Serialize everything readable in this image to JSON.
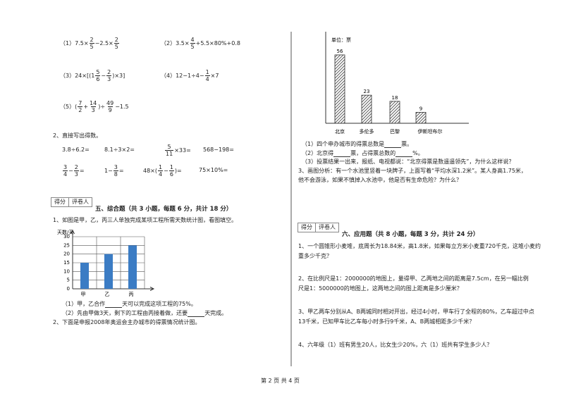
{
  "calc": [
    {
      "label": "（1）",
      "expr": [
        "7.5×",
        {
          "n": "2",
          "d": "5"
        },
        "−2.5×",
        {
          "n": "2",
          "d": "5"
        }
      ]
    },
    {
      "label": "（2）",
      "expr": [
        "3.5×",
        {
          "n": "4",
          "d": "5"
        },
        "+5.5×80%+0.8"
      ]
    },
    {
      "label": "（3）",
      "expr": [
        "24×[(1",
        {
          "n": "5",
          "d": "6"
        },
        "−",
        {
          "n": "2",
          "d": "3"
        },
        ")×3]"
      ]
    },
    {
      "label": "（4）",
      "expr": [
        "12−1÷4−",
        {
          "n": "1",
          "d": "4"
        },
        "×7"
      ]
    },
    {
      "label": "（5）",
      "expr": [
        "(",
        {
          "n": "7",
          "d": "2"
        },
        "+",
        {
          "n": "14",
          "d": "3"
        },
        ")÷",
        {
          "n": "49",
          "d": "9"
        },
        "−1.5"
      ]
    }
  ],
  "oral": {
    "title": "2、直接写出得数。",
    "items": [
      {
        "expr": [
          "3.8÷6.2="
        ]
      },
      {
        "expr": [
          "8.1÷3×2="
        ]
      },
      {
        "expr": [
          {
            "n": "5",
            "d": "11"
          },
          "×33="
        ]
      },
      {
        "expr": [
          "568−198="
        ]
      },
      {
        "expr": [
          {
            "n": "3",
            "d": "4"
          },
          "−",
          {
            "n": "2",
            "d": "3"
          },
          "="
        ]
      },
      {
        "expr": [
          "1−",
          {
            "n": "3",
            "d": "8"
          },
          "="
        ]
      },
      {
        "expr": [
          "48×(",
          {
            "n": "1",
            "d": "4"
          },
          "−",
          {
            "n": "1",
            "d": "6"
          },
          ")="
        ]
      },
      {
        "expr": [
          "75×10%="
        ]
      }
    ]
  },
  "score_box": {
    "score": "得分",
    "grader": "评卷人"
  },
  "section5": {
    "heading": "五、综合题（共 3 小题，每题 6 分，共计 18 分）",
    "q1": "1、如图是甲，乙，丙三人单独完成某项工程所需天数统计图，看图填空。",
    "q1_a": [
      "（1）甲，乙合作",
      "天可以完成这项工程的75%。"
    ],
    "q1_b": [
      "（2）先由甲做3天，剩下的工程由丙接着做，还要",
      "天完成。"
    ],
    "q2": "2、下面是申报2008年奥运会主办城市的得票情况统计图。",
    "q2_a": [
      "（1）四个申办城市的得票总数是",
      "票。"
    ],
    "q2_b": [
      "（2）北京得",
      "票，占得票总数的",
      "%。"
    ],
    "q2_c": "（3）投票结果一出来，报纸、电视都说：“北京得票是数遥遥领先”，为什么这样说？",
    "q3_1": "3、画图分析：有一个水池里竖着一块牌子，上面写着“平均水深1.2米”。某人身高1.75米，",
    "q3_2": "他不会游泳，如果不慎掉入水池中，他是否有生命危险？为什么？"
  },
  "chart_days": {
    "type": "bar",
    "y_label": "天数/天",
    "categories": [
      "甲",
      "乙",
      "丙"
    ],
    "values": [
      15,
      20,
      25
    ],
    "color": "#3b7cc4",
    "ylim": [
      0,
      30
    ],
    "yticks": [
      0,
      5,
      10,
      15,
      20,
      25,
      30
    ],
    "grid": true
  },
  "chart_votes": {
    "type": "bar",
    "unit": "单位：票",
    "categories": [
      "北京",
      "多伦多",
      "巴黎",
      "伊斯坦布尔"
    ],
    "values": [
      56,
      23,
      18,
      9
    ],
    "ylim": [
      0,
      75
    ],
    "color": "#333333"
  },
  "section6": {
    "heading": "六、应用题（共 8 小题，每题 3 分，共计 24 分）",
    "q1_1": "1、一个圆锥形小麦堆，底周长为18.84米，高1.8米，如果每立方米小麦重720千克，这堆小麦约",
    "q1_2": "重多少千克？",
    "q2_1": "2、在比例尺是1：2000000的地图上，量得甲、乙两地之间的距离是7.5cm，在另一幅比例",
    "q2_2": "尺是1：5000000的地图上，这两地之间的图上距离是多少厘米？",
    "q3_1": "3、甲乙两车分别从A、B两城同时相对开出，经过4小时，甲车行了全程的80%，乙车超过中点",
    "q3_2": "13千米，已知甲车比乙车每小时多行9千米，A、B两城相距多少千米？",
    "q4": "4、六年级（1）班有男生20人，比女生少20%，六（1）班共有学生多少人？"
  },
  "footer": "第 2 页 共 4 页"
}
